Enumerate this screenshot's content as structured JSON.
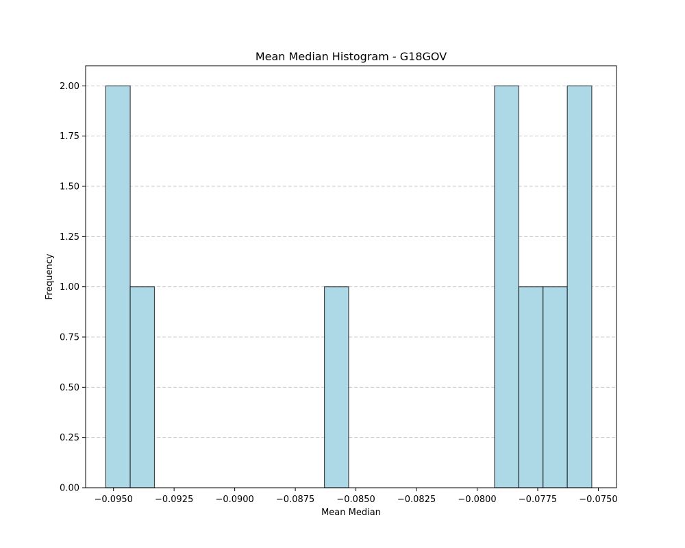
{
  "chart_data": {
    "type": "bar",
    "title": "Mean Median Histogram - G18GOV",
    "xlabel": "Mean Median",
    "ylabel": "Frequency",
    "xlim": [
      -0.09615,
      -0.07425
    ],
    "ylim": [
      0,
      2.1
    ],
    "bins": [
      {
        "start": -0.09532,
        "end": -0.09431,
        "count": 2
      },
      {
        "start": -0.09431,
        "end": -0.09331,
        "count": 1
      },
      {
        "start": -0.0863,
        "end": -0.0853,
        "count": 1
      },
      {
        "start": -0.07928,
        "end": -0.07828,
        "count": 2
      },
      {
        "start": -0.07828,
        "end": -0.07728,
        "count": 1
      },
      {
        "start": -0.07728,
        "end": -0.07628,
        "count": 1
      },
      {
        "start": -0.07628,
        "end": -0.07527,
        "count": 2
      }
    ],
    "x_ticks": [
      "−0.0950",
      "−0.0925",
      "−0.0900",
      "−0.0875",
      "−0.0850",
      "−0.0825",
      "−0.0800",
      "−0.0775",
      "−0.0750"
    ],
    "x_tick_values": [
      -0.095,
      -0.0925,
      -0.09,
      -0.0875,
      -0.085,
      -0.0825,
      -0.08,
      -0.0775,
      -0.075
    ],
    "y_ticks": [
      "0.00",
      "0.25",
      "0.50",
      "0.75",
      "1.00",
      "1.25",
      "1.50",
      "1.75",
      "2.00"
    ],
    "y_tick_values": [
      0,
      0.25,
      0.5,
      0.75,
      1.0,
      1.25,
      1.5,
      1.75,
      2.0
    ],
    "grid": "y-dashed",
    "bar_color": "#add8e6",
    "bar_edge_color": "#000000"
  }
}
